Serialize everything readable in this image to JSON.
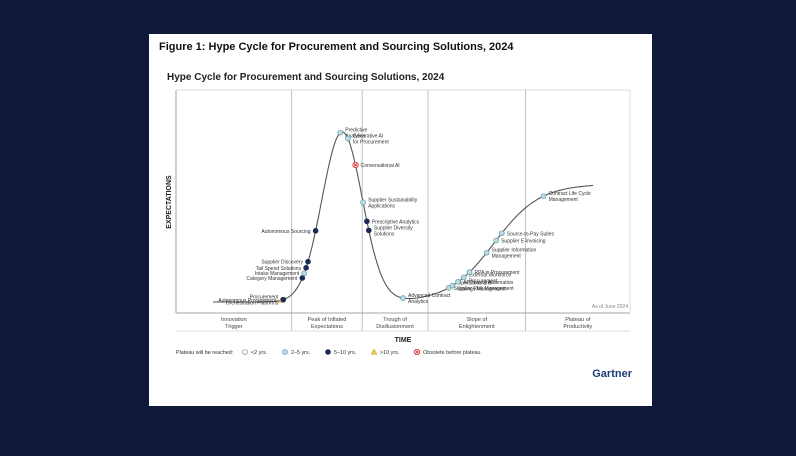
{
  "figure_title": "Figure 1: Hype Cycle for Procurement and Sourcing Solutions, 2024",
  "brand": "Gartner",
  "colors": {
    "page_bg": "#0f1838",
    "card_bg": "#ffffff",
    "curve": "#555555",
    "lt2": "#ffffff",
    "y2to5": "#b9dde6",
    "y5to10": "#1b2a57",
    "gt10": "#f2c94c",
    "obsolete": "#e03b3b"
  },
  "chart_data": {
    "type": "hype-cycle",
    "title": "Hype Cycle for Procurement and Sourcing Solutions, 2024",
    "ylabel": "EXPECTATIONS",
    "xlabel": "TIME",
    "as_of": "As of June 2024",
    "phases": [
      {
        "lines": [
          "Innovation",
          "Trigger"
        ]
      },
      {
        "lines": [
          "Peak of Inflated",
          "Expectations"
        ]
      },
      {
        "lines": [
          "Trough of",
          "Disillusionment"
        ]
      },
      {
        "lines": [
          "Slope of",
          "Enlightenment"
        ]
      },
      {
        "lines": [
          "Plateau of",
          "Productivity"
        ]
      }
    ],
    "legend": {
      "prefix": "Plateau will be reached:",
      "items": [
        {
          "key": "lt2",
          "label": "<2 yrs."
        },
        {
          "key": "y2to5",
          "label": "2–5 yrs."
        },
        {
          "key": "y5to10",
          "label": "5–10 yrs."
        },
        {
          "key": "gt10",
          "label": ">10 yrs."
        },
        {
          "key": "obsolete",
          "label": "Obsolete before plateau"
        }
      ]
    },
    "technologies": [
      {
        "name": [
          "Autonomous Procurement"
        ],
        "t": 0.18,
        "plateau": "gt10"
      },
      {
        "name": [
          "Procurement",
          "Orchestration Platforms"
        ],
        "t": 0.185,
        "plateau": "y5to10"
      },
      {
        "name": [
          "Category Management"
        ],
        "t": 0.235,
        "plateau": "y5to10"
      },
      {
        "name": [
          "Intake Management"
        ],
        "t": 0.24,
        "plateau": "y2to5"
      },
      {
        "name": [
          "Tail Spend Solutions"
        ],
        "t": 0.245,
        "plateau": "y5to10"
      },
      {
        "name": [
          "Supplier Discovery"
        ],
        "t": 0.25,
        "plateau": "y5to10"
      },
      {
        "name": [
          "Autonomous Sourcing"
        ],
        "t": 0.27,
        "plateau": "y5to10"
      },
      {
        "name": [
          "Predictive",
          "Analytics"
        ],
        "t": 0.335,
        "plateau": "y2to5"
      },
      {
        "name": [
          "Generative AI",
          "for Procurement"
        ],
        "t": 0.355,
        "plateau": "y2to5"
      },
      {
        "name": [
          "Conversational AI"
        ],
        "t": 0.375,
        "plateau": "obsolete"
      },
      {
        "name": [
          "Supplier Sustainability",
          "Applications"
        ],
        "t": 0.395,
        "plateau": "y2to5"
      },
      {
        "name": [
          "Prescriptive Analytics"
        ],
        "t": 0.405,
        "plateau": "y5to10"
      },
      {
        "name": [
          "Supplier Diversity",
          "Solutions"
        ],
        "t": 0.41,
        "plateau": "y5to10"
      },
      {
        "name": [
          "Advanced Contract",
          "Analytics"
        ],
        "t": 0.5,
        "plateau": "y2to5"
      },
      {
        "name": [
          "Supplier Risk Management"
        ],
        "t": 0.62,
        "plateau": "y2to5"
      },
      {
        "name": [
          "Operations and",
          "Savings Management"
        ],
        "t": 0.63,
        "plateau": "y2to5"
      },
      {
        "name": [
          "AP Invoice Automation"
        ],
        "t": 0.645,
        "plateau": "y2to5"
      },
      {
        "name": [
          "External Workforce",
          "Procurement"
        ],
        "t": 0.66,
        "plateau": "y2to5"
      },
      {
        "name": [
          "RPA in Procurement"
        ],
        "t": 0.675,
        "plateau": "y2to5"
      },
      {
        "name": [
          "Supplier Information",
          "Management"
        ],
        "t": 0.72,
        "plateau": "y2to5"
      },
      {
        "name": [
          "Supplier E-Invoicing"
        ],
        "t": 0.745,
        "plateau": "y2to5"
      },
      {
        "name": [
          "Source-to-Pay Suites"
        ],
        "t": 0.76,
        "plateau": "y2to5"
      },
      {
        "name": [
          "Contract Life Cycle",
          "Management"
        ],
        "t": 0.87,
        "plateau": "y2to5"
      }
    ]
  }
}
